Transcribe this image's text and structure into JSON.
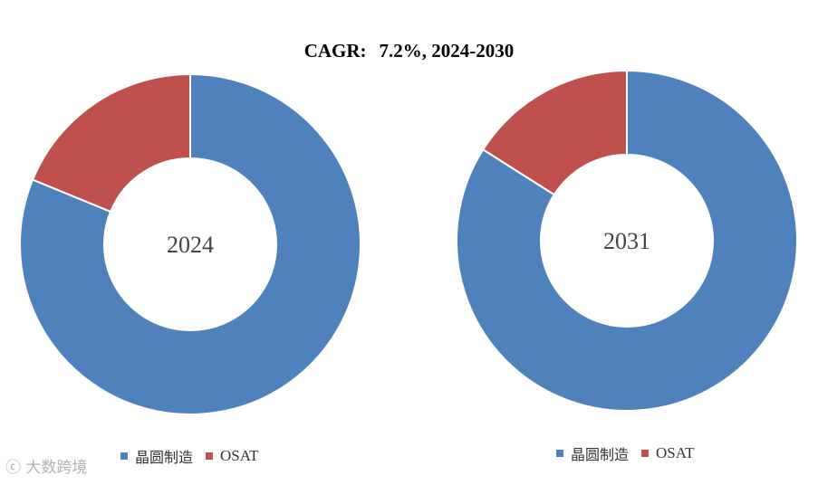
{
  "title": {
    "prefix": "CAGR:",
    "value": "7.2%, 2024-2030"
  },
  "colors": {
    "wafer": "#4F81BD",
    "osat": "#C0504D"
  },
  "chart_data": [
    {
      "type": "pie",
      "center_label": "2024",
      "categories": [
        "晶圆制造",
        "OSAT"
      ],
      "values": [
        81.2,
        18.8
      ],
      "legend": "bottom"
    },
    {
      "type": "pie",
      "center_label": "2031",
      "categories": [
        "晶圆制造",
        "OSAT"
      ],
      "values": [
        84.0,
        16.0
      ],
      "legend": "bottom"
    }
  ],
  "legend": {
    "left": [
      "晶圆制造",
      "OSAT"
    ],
    "right": [
      "晶圆制造",
      "OSAT"
    ]
  },
  "watermark": "大数跨境"
}
